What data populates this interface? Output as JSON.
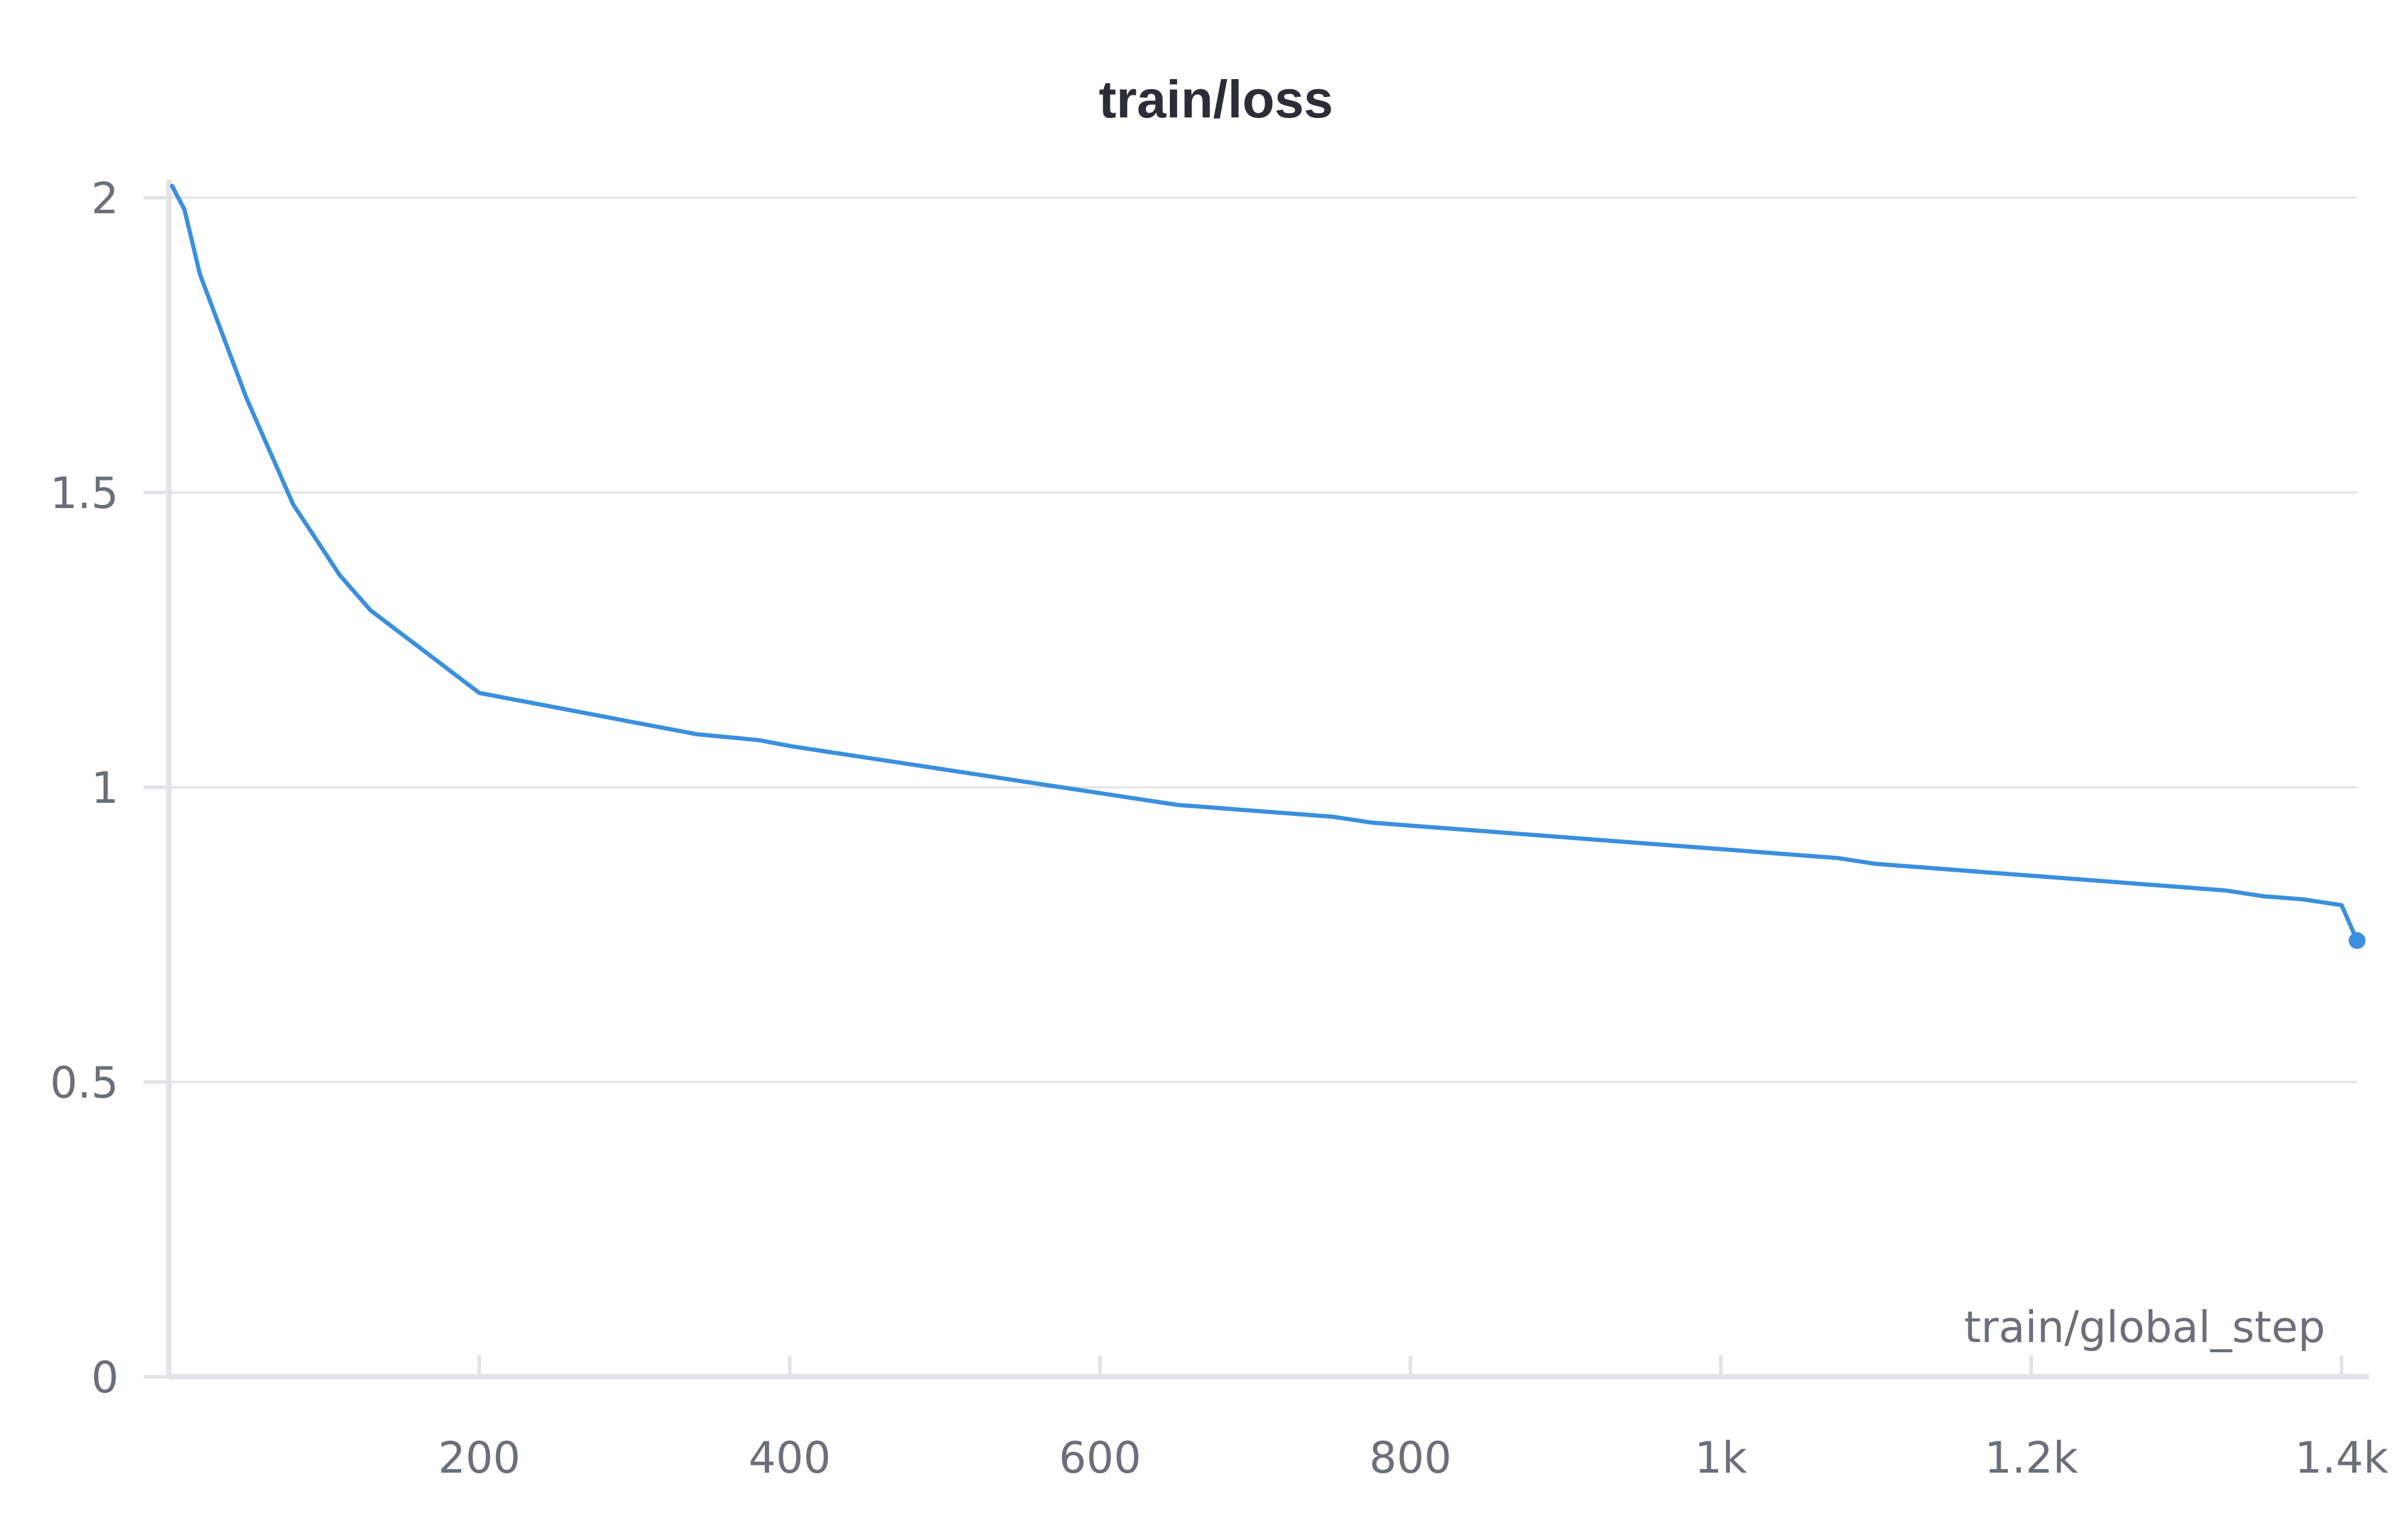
{
  "chart_data": {
    "type": "line",
    "title": "train/loss",
    "xlabel": "train/global_step",
    "ylabel": "",
    "xlim": [
      0,
      1410
    ],
    "ylim": [
      0,
      2
    ],
    "x_ticks": [
      {
        "value": 200,
        "label": "200"
      },
      {
        "value": 400,
        "label": "400"
      },
      {
        "value": 600,
        "label": "600"
      },
      {
        "value": 800,
        "label": "800"
      },
      {
        "value": 1000,
        "label": "1k"
      },
      {
        "value": 1200,
        "label": "1.2k"
      },
      {
        "value": 1400,
        "label": "1.4k"
      }
    ],
    "y_ticks": [
      {
        "value": 0,
        "label": "0"
      },
      {
        "value": 0.5,
        "label": "0.5"
      },
      {
        "value": 1,
        "label": "1"
      },
      {
        "value": 1.5,
        "label": "1.5"
      },
      {
        "value": 2,
        "label": "2"
      }
    ],
    "grid": true,
    "series": [
      {
        "color": "#3a8fde",
        "x": [
          2,
          10,
          20,
          30,
          40,
          50,
          60,
          70,
          80,
          90,
          100,
          110,
          120,
          130,
          140,
          150,
          160,
          170,
          180,
          190,
          200,
          220,
          240,
          260,
          280,
          300,
          320,
          340,
          360,
          380,
          400,
          425,
          450,
          475,
          500,
          525,
          550,
          575,
          600,
          625,
          650,
          675,
          700,
          725,
          750,
          775,
          800,
          825,
          850,
          875,
          900,
          925,
          950,
          975,
          1000,
          1025,
          1050,
          1075,
          1100,
          1125,
          1150,
          1175,
          1200,
          1225,
          1250,
          1275,
          1300,
          1325,
          1350,
          1375,
          1400,
          1410
        ],
        "y": [
          2.02,
          1.98,
          1.87,
          1.8,
          1.73,
          1.66,
          1.6,
          1.54,
          1.48,
          1.44,
          1.4,
          1.36,
          1.33,
          1.3,
          1.28,
          1.26,
          1.24,
          1.22,
          1.2,
          1.18,
          1.16,
          1.15,
          1.14,
          1.13,
          1.12,
          1.11,
          1.1,
          1.09,
          1.085,
          1.08,
          1.07,
          1.06,
          1.05,
          1.04,
          1.03,
          1.02,
          1.01,
          1.0,
          0.99,
          0.98,
          0.97,
          0.965,
          0.96,
          0.955,
          0.95,
          0.94,
          0.935,
          0.93,
          0.925,
          0.92,
          0.915,
          0.91,
          0.905,
          0.9,
          0.895,
          0.89,
          0.885,
          0.88,
          0.87,
          0.865,
          0.86,
          0.855,
          0.85,
          0.845,
          0.84,
          0.835,
          0.83,
          0.825,
          0.815,
          0.81,
          0.8,
          0.74
        ]
      }
    ]
  }
}
